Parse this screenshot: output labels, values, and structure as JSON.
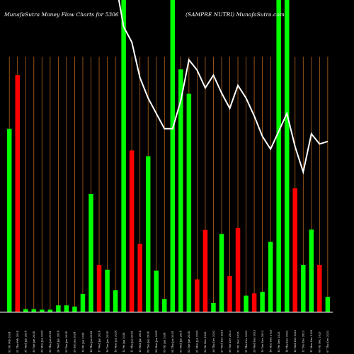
{
  "chart_data": {
    "type": "bar",
    "title_left": "MunafaSutra  Money Flow  Charts for 5306",
    "title_right": "(SAMPRE NUTRI) MunafaSutra.com",
    "colors": {
      "background": "#000000",
      "up": "#00ff00",
      "down": "#ff0000",
      "grid": "#b5651d",
      "line": "#ffffff"
    },
    "categories": [
      "02 Fri Feb 2024",
      "01 Thu Feb 2024",
      "31 Wed Jan 2024",
      "30 Tue Jan 2024",
      "29 Mon Jan 2024",
      "25 Thu Jan 2024",
      "24 Wed Jan 2024",
      "23 Tue Jan 2024",
      "20 Sat Jan 2024",
      "19 Fri Jan 2024",
      "18 Thu Jan 2024",
      "17 Wed Jan 2024",
      "16 Tue Jan 2024",
      "15 Mon Jan 2024",
      "12 Fri Jan 2024",
      "11 Thu Jan 2024",
      "10 Wed Jan 2024",
      "09 Tue Jan 2024",
      "08 Mon Jan 2024",
      "05 Fri Jan 2024",
      "04 Thu Jan 2024",
      "03 Wed Jan 2024",
      "02 Tue Jan 2024",
      "01 Mon Jan 2024",
      "29 Fri Dec 2023",
      "28 Thu Dec 2023",
      "27 Wed Dec 2023",
      "26 Tue Dec 2023",
      "22 Fri Dec 2023",
      "21 Thu Dec 2023",
      "20 Wed Dec 2023",
      "19 Tue Dec 2023",
      "18 Mon Dec 2023",
      "15 Fri Dec 2023",
      "14 Thu Dec 2023",
      "13 Wed Dec 2023",
      "12 Tue Dec 2023",
      "11 Mon Dec 2023",
      "08 Fri Dec 2023",
      "07 Thu Dec 2023"
    ],
    "tick_labels": [
      "02 Fri Feb 2024",
      "01 Thu Feb 2024",
      "31 Wed Jan 2024",
      "30 Tue Jan 2024",
      "29 Mon Jan 2024",
      "25 Thu Jan 2024",
      "24 Wed Jan 2024",
      "23 Tue Jan 2024",
      "20 Sat Jan 2024",
      "19 Fri Jan 2024",
      "18 Thu Jan 2024",
      "17 Wed Jan 2024",
      "16 Tue Jan 2024",
      "15 Mon Jan 2024",
      "12 Fri Jan 2024",
      "11 Thu Jan 2024",
      "10 Wed Jan 2024",
      "09 Tue Jan 2024",
      "08 Mon Jan 2024",
      "05 Fri Jan 2024",
      "04 Thu Jan 2024",
      "03 Wed Jan 2024",
      "02 Tue Jan 2024",
      "01 Mon Jan 2024",
      "29 Fri Dec 2023",
      "28 Thu Dec 2023",
      "27 Wed Dec 2023",
      "26 Tue Dec 2023",
      "22 Fri Dec 2023",
      "21 Thu Dec 2023",
      "20 Wed Dec 2023",
      "19 Tue Dec 2023",
      "18 Mon Dec 2023",
      "15 Fri Dec 2023",
      "14 Thu Dec 2023",
      "13 Wed Dec 2023",
      "12 Tue Dec 2023",
      "11 Mon Dec 2023",
      "08 Fri Dec 2023",
      "07 Thu Dec 2023"
    ],
    "bars": [
      {
        "v": 72,
        "dir": "up"
      },
      {
        "v": 93,
        "dir": "down"
      },
      {
        "v": 1.2,
        "dir": "up"
      },
      {
        "v": 1.2,
        "dir": "up"
      },
      {
        "v": 1,
        "dir": "up"
      },
      {
        "v": 1,
        "dir": "up"
      },
      {
        "v": 2.7,
        "dir": "up"
      },
      {
        "v": 2.7,
        "dir": "up"
      },
      {
        "v": 2.2,
        "dir": "up"
      },
      {
        "v": 7.2,
        "dir": "up"
      },
      {
        "v": 46.4,
        "dir": "up"
      },
      {
        "v": 18.6,
        "dir": "down"
      },
      {
        "v": 16.7,
        "dir": "up"
      },
      {
        "v": 8.6,
        "dir": "up"
      },
      {
        "v": 130,
        "dir": "up"
      },
      {
        "v": 63.5,
        "dir": "down"
      },
      {
        "v": 26.8,
        "dir": "down"
      },
      {
        "v": 61.2,
        "dir": "up"
      },
      {
        "v": 16.3,
        "dir": "up"
      },
      {
        "v": 5.2,
        "dir": "up"
      },
      {
        "v": 130,
        "dir": "up"
      },
      {
        "v": 95.3,
        "dir": "up"
      },
      {
        "v": 85.7,
        "dir": "up"
      },
      {
        "v": 12.9,
        "dir": "down"
      },
      {
        "v": 32.3,
        "dir": "down"
      },
      {
        "v": 3.6,
        "dir": "up"
      },
      {
        "v": 30.7,
        "dir": "up"
      },
      {
        "v": 14.2,
        "dir": "down"
      },
      {
        "v": 33.1,
        "dir": "down"
      },
      {
        "v": 6.5,
        "dir": "up"
      },
      {
        "v": 7.4,
        "dir": "down"
      },
      {
        "v": 8,
        "dir": "up"
      },
      {
        "v": 27.6,
        "dir": "up"
      },
      {
        "v": 130,
        "dir": "up"
      },
      {
        "v": 130,
        "dir": "up"
      },
      {
        "v": 48.6,
        "dir": "down"
      },
      {
        "v": 18.6,
        "dir": "up"
      },
      {
        "v": 32.4,
        "dir": "up"
      },
      {
        "v": 18.6,
        "dir": "down"
      },
      {
        "v": 6,
        "dir": "up"
      }
    ],
    "ylim": [
      0,
      100
    ],
    "line_values": [
      130,
      130,
      130,
      130,
      130,
      130,
      130,
      130,
      130,
      130,
      130,
      130,
      130,
      130,
      112,
      106,
      92,
      84,
      78,
      72,
      72,
      83,
      99,
      95,
      88,
      93,
      86,
      80,
      89,
      84,
      77,
      69,
      64,
      71,
      78,
      65,
      55,
      70,
      66,
      67
    ],
    "line_ylim": [
      0,
      100
    ]
  }
}
